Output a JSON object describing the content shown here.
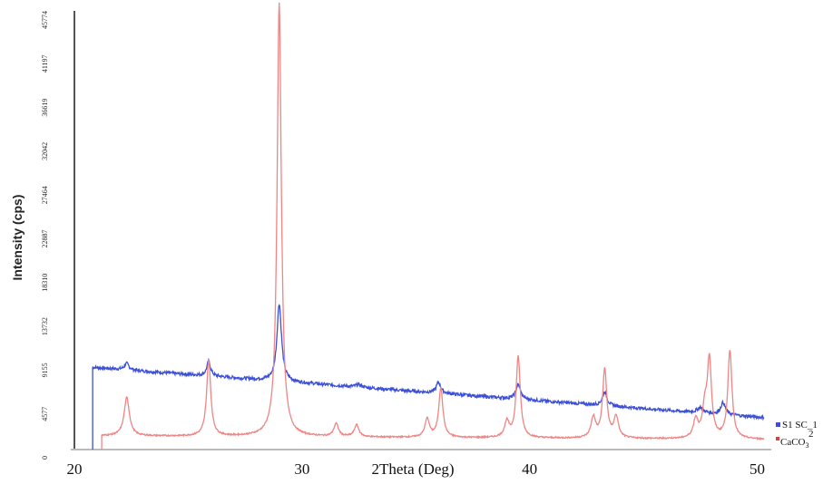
{
  "chart_data": {
    "type": "line",
    "title": "",
    "xlabel": "2Theta (Deg)",
    "ylabel": "Intensity (cps)",
    "xlim": [
      20,
      50.3
    ],
    "ylim": [
      0,
      48000
    ],
    "x_ticks": [
      20,
      30,
      40,
      50
    ],
    "x_tick_labels": [
      "20",
      "30",
      "40",
      "50"
    ],
    "y_tick_labels": [
      "0",
      "4577",
      "9155",
      "13732",
      "18310",
      "22887",
      "27464",
      "32042",
      "36619",
      "41197",
      "45774"
    ],
    "grid": false,
    "legend_position": "bottom-right",
    "series": [
      {
        "name": "S1 SC_1",
        "color": "#3b4fd9",
        "start_x": 20.8,
        "background_start": 9000,
        "background_end": 3500,
        "peaks": [
          {
            "x": 22.3,
            "height": 700,
            "width": 0.12
          },
          {
            "x": 25.9,
            "height": 1600,
            "width": 0.1
          },
          {
            "x": 29.0,
            "height": 8500,
            "width": 0.12
          },
          {
            "x": 32.5,
            "height": 300,
            "width": 0.15
          },
          {
            "x": 36.0,
            "height": 1200,
            "width": 0.12
          },
          {
            "x": 39.5,
            "height": 1600,
            "width": 0.12
          },
          {
            "x": 43.3,
            "height": 1500,
            "width": 0.12
          },
          {
            "x": 47.5,
            "height": 600,
            "width": 0.15
          },
          {
            "x": 48.5,
            "height": 1300,
            "width": 0.12
          }
        ]
      },
      {
        "name": "CaCO",
        "name_subscript": "3",
        "name_superscript": "2",
        "color": "#f08585",
        "start_x": 21.2,
        "background_start": 1500,
        "background_end": 1100,
        "peaks": [
          {
            "x": 22.3,
            "height": 4200,
            "width": 0.14
          },
          {
            "x": 25.9,
            "height": 8300,
            "width": 0.11
          },
          {
            "x": 29.0,
            "height": 47500,
            "width": 0.11
          },
          {
            "x": 31.5,
            "height": 1400,
            "width": 0.12
          },
          {
            "x": 32.4,
            "height": 1300,
            "width": 0.12
          },
          {
            "x": 35.5,
            "height": 2000,
            "width": 0.12
          },
          {
            "x": 36.1,
            "height": 5400,
            "width": 0.11
          },
          {
            "x": 39.0,
            "height": 1700,
            "width": 0.12
          },
          {
            "x": 39.5,
            "height": 8900,
            "width": 0.11
          },
          {
            "x": 42.8,
            "height": 2200,
            "width": 0.12
          },
          {
            "x": 43.3,
            "height": 7500,
            "width": 0.11
          },
          {
            "x": 43.8,
            "height": 2300,
            "width": 0.12
          },
          {
            "x": 47.3,
            "height": 2000,
            "width": 0.12
          },
          {
            "x": 47.7,
            "height": 3000,
            "width": 0.12
          },
          {
            "x": 47.9,
            "height": 8400,
            "width": 0.11
          },
          {
            "x": 48.8,
            "height": 9600,
            "width": 0.11
          }
        ]
      }
    ]
  }
}
